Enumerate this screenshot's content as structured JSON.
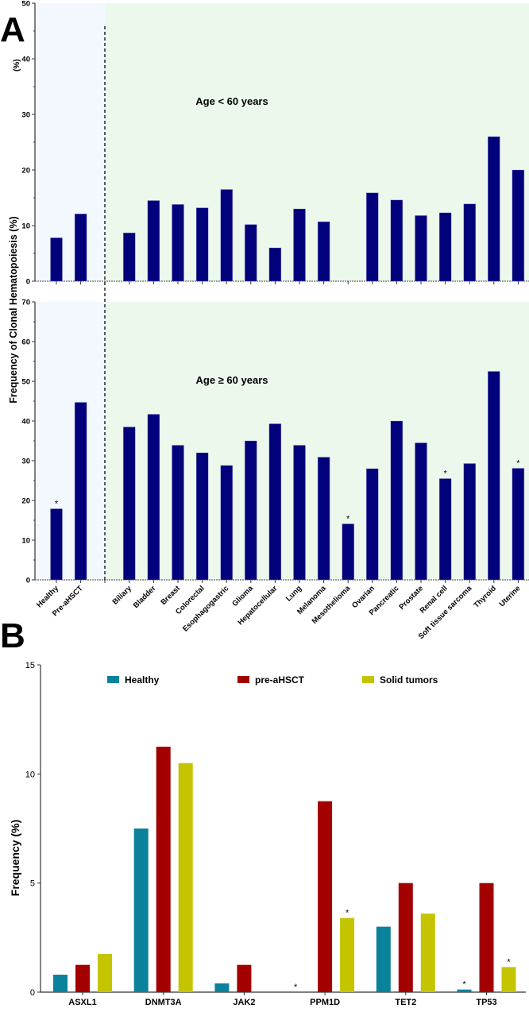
{
  "panel_labels": {
    "a": "A",
    "b": "B"
  },
  "colors": {
    "bar_a": "#02007a",
    "bg_control": "#f2f8fe",
    "bg_tumor": "#ecf8ec",
    "healthy": "#0a829c",
    "pre_ahsct": "#a30000",
    "solid": "#c4c400"
  },
  "chart_data": [
    {
      "type": "bar",
      "panel": "A-top",
      "annotation": "Age < 60 years",
      "ylabel": "Frequency of Clonal Hematopoiesis (%)",
      "ylabel_fragment": "(%)",
      "ylim": [
        0,
        50
      ],
      "yticks": [
        0,
        10,
        20,
        30,
        40,
        50
      ],
      "categories": [
        "Healthy",
        "Pre-aHSCT",
        "Biliary",
        "Bladder",
        "Breast",
        "Colorectal",
        "Esophagogastric",
        "Glioma",
        "Hepatocellular",
        "Lung",
        "Melanoma",
        "Mesothelioma",
        "Ovarian",
        "Pancreatic",
        "Prostate",
        "Renal cell",
        "Soft tissue sarcoma",
        "Thyroid",
        "Uterine"
      ],
      "values": [
        7.8,
        12.1,
        8.7,
        14.5,
        13.8,
        13.2,
        16.5,
        10.2,
        6.0,
        13.0,
        10.7,
        0,
        15.9,
        14.6,
        11.8,
        12.3,
        13.9,
        26.0,
        20.0
      ],
      "significant": []
    },
    {
      "type": "bar",
      "panel": "A-bottom",
      "annotation": "Age ≥ 60 years",
      "ylim": [
        0,
        70
      ],
      "yticks": [
        0,
        10,
        20,
        30,
        40,
        50,
        60,
        70
      ],
      "categories": [
        "Healthy",
        "Pre-aHSCT",
        "Biliary",
        "Bladder",
        "Breast",
        "Colorectal",
        "Esophagogastric",
        "Glioma",
        "Hepatocellular",
        "Lung",
        "Melanoma",
        "Mesothelioma",
        "Ovarian",
        "Pancreatic",
        "Prostate",
        "Renal cell",
        "Soft tissue sarcoma",
        "Thyroid",
        "Uterine"
      ],
      "values": [
        17.9,
        44.7,
        38.5,
        41.7,
        33.9,
        32.0,
        28.8,
        35.0,
        39.3,
        33.9,
        30.9,
        14.1,
        28.0,
        40.0,
        34.5,
        25.5,
        29.3,
        52.5,
        28.1
      ],
      "significant": [
        "Healthy",
        "Mesothelioma",
        "Renal cell",
        "Uterine"
      ],
      "marker": "*"
    },
    {
      "type": "bar",
      "panel": "B",
      "ylabel": "Frequency (%)",
      "ylim": [
        0,
        15
      ],
      "yticks": [
        0,
        5,
        10,
        15
      ],
      "legend_position": "top",
      "categories": [
        "ASXL1",
        "DNMT3A",
        "JAK2",
        "PPM1D",
        "TET2",
        "TP53"
      ],
      "series": [
        {
          "name": "Healthy",
          "values": [
            0.8,
            7.5,
            0.4,
            0,
            3.0,
            0.12
          ],
          "significant": [
            false,
            false,
            false,
            true,
            false,
            true
          ]
        },
        {
          "name": "pre-aHSCT",
          "values": [
            1.25,
            11.25,
            1.25,
            8.75,
            5.0,
            5.0
          ],
          "significant": [
            false,
            false,
            false,
            false,
            false,
            false
          ]
        },
        {
          "name": "Solid tumors",
          "values": [
            1.75,
            10.5,
            0,
            3.4,
            3.6,
            1.15
          ],
          "significant": [
            false,
            false,
            false,
            true,
            false,
            true
          ]
        }
      ],
      "marker": "*"
    }
  ]
}
